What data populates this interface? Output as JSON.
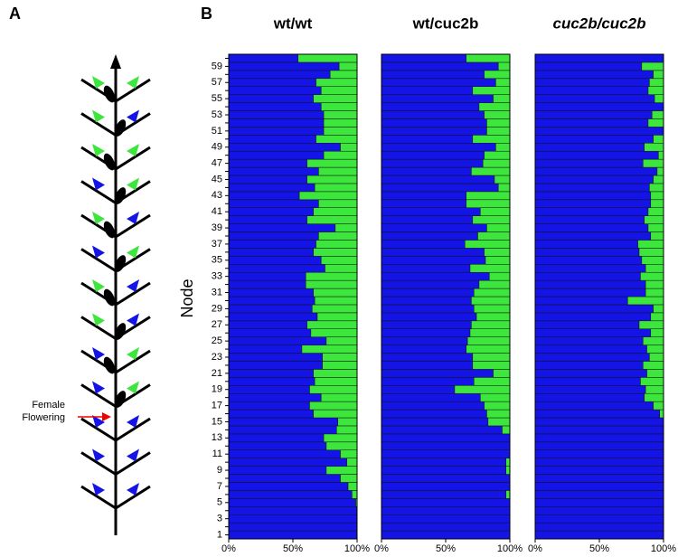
{
  "panel_labels": [
    "A",
    "B"
  ],
  "diagram": {
    "annotation": [
      "Female",
      "Flowering"
    ]
  },
  "chart_data": [
    {
      "type": "stacked-hbar",
      "title": "wt/wt",
      "y_label": "Node",
      "categories": [
        1,
        null,
        3,
        null,
        5,
        null,
        7,
        null,
        9,
        null,
        11,
        null,
        13,
        null,
        15,
        null,
        17,
        null,
        19,
        null,
        21,
        null,
        23,
        null,
        25,
        null,
        27,
        null,
        29,
        null,
        31,
        null,
        33,
        null,
        35,
        null,
        37,
        null,
        39,
        null,
        41,
        null,
        43,
        null,
        45,
        null,
        47,
        null,
        49,
        null,
        51,
        null,
        53,
        null,
        55,
        null,
        57,
        null,
        59,
        null
      ],
      "xlim": [
        0,
        100
      ],
      "xticks": [
        {
          "value": 0,
          "label": "0%"
        },
        {
          "value": 50,
          "label": "50%"
        },
        {
          "value": 100,
          "label": "100%"
        }
      ],
      "series": [
        {
          "color": "#1414e6",
          "values": [
            100,
            100,
            100,
            100,
            99,
            96,
            93,
            87,
            76,
            92,
            87,
            76,
            74,
            84,
            85,
            66,
            63,
            72,
            63,
            67,
            66,
            73,
            73,
            57,
            76,
            64,
            61,
            69,
            65,
            67,
            66,
            60,
            60,
            75,
            72,
            66,
            68,
            70,
            83,
            61,
            66,
            70,
            55,
            67,
            61,
            70,
            61,
            74,
            87,
            68,
            74,
            74,
            74,
            72,
            66,
            72,
            68,
            79,
            86,
            54
          ]
        },
        {
          "color": "#3ce63c",
          "values": [
            0,
            0,
            0,
            0,
            1,
            4,
            7,
            13,
            24,
            8,
            13,
            24,
            26,
            16,
            15,
            34,
            37,
            28,
            37,
            33,
            34,
            27,
            27,
            43,
            24,
            36,
            39,
            31,
            35,
            33,
            34,
            40,
            40,
            25,
            28,
            34,
            32,
            30,
            17,
            39,
            34,
            30,
            45,
            33,
            39,
            30,
            39,
            26,
            13,
            32,
            26,
            26,
            26,
            28,
            34,
            28,
            32,
            21,
            14,
            46
          ]
        }
      ]
    },
    {
      "type": "stacked-hbar",
      "title": "wt/cuc2b",
      "xlim": [
        0,
        100
      ],
      "xticks": [
        {
          "value": 0,
          "label": "0%"
        },
        {
          "value": 50,
          "label": "50%"
        },
        {
          "value": 100,
          "label": "100%"
        }
      ],
      "series": [
        {
          "color": "#1414e6",
          "values": [
            100,
            100,
            100,
            100,
            100,
            97,
            100,
            100,
            97,
            97,
            100,
            100,
            100,
            94,
            83,
            82,
            80,
            77,
            57,
            72,
            87,
            71,
            71,
            66,
            67,
            69,
            70,
            74,
            72,
            70,
            72,
            76,
            84,
            69,
            81,
            80,
            65,
            75,
            82,
            71,
            77,
            66,
            66,
            91,
            88,
            70,
            79,
            80,
            89,
            71,
            82,
            82,
            80,
            76,
            87,
            71,
            89,
            80,
            91,
            66
          ]
        },
        {
          "color": "#3ce63c",
          "values": [
            0,
            0,
            0,
            0,
            0,
            3,
            0,
            0,
            3,
            3,
            0,
            0,
            0,
            6,
            17,
            18,
            20,
            23,
            43,
            28,
            13,
            29,
            29,
            34,
            33,
            31,
            30,
            26,
            28,
            30,
            28,
            24,
            16,
            31,
            19,
            20,
            35,
            25,
            18,
            29,
            23,
            34,
            34,
            9,
            12,
            30,
            21,
            20,
            11,
            29,
            18,
            18,
            20,
            24,
            13,
            29,
            11,
            20,
            9,
            34
          ]
        }
      ]
    },
    {
      "type": "stacked-hbar",
      "title": "cuc2b/cuc2b",
      "xlim": [
        0,
        100
      ],
      "xticks": [
        {
          "value": 0,
          "label": "0%"
        },
        {
          "value": 50,
          "label": "50%"
        },
        {
          "value": 100,
          "label": "100%"
        }
      ],
      "series": [
        {
          "color": "#1414e6",
          "values": [
            100,
            100,
            100,
            100,
            100,
            100,
            100,
            100,
            100,
            100,
            100,
            100,
            100,
            100,
            100,
            97,
            92,
            85,
            86,
            82,
            87,
            84,
            89,
            87,
            84,
            90,
            81,
            90,
            92,
            72,
            86,
            86,
            82,
            86,
            83,
            81,
            80,
            90,
            88,
            85,
            88,
            90,
            90,
            89,
            92,
            95,
            84,
            96,
            85,
            92,
            100,
            88,
            91,
            100,
            93,
            88,
            89,
            92,
            83,
            100
          ]
        },
        {
          "color": "#3ce63c",
          "values": [
            0,
            0,
            0,
            0,
            0,
            0,
            0,
            0,
            0,
            0,
            0,
            0,
            0,
            0,
            0,
            3,
            8,
            15,
            14,
            18,
            13,
            16,
            11,
            13,
            16,
            10,
            19,
            10,
            8,
            28,
            14,
            14,
            18,
            14,
            17,
            19,
            20,
            10,
            12,
            15,
            12,
            10,
            10,
            11,
            8,
            5,
            16,
            4,
            15,
            8,
            0,
            12,
            9,
            0,
            7,
            12,
            11,
            8,
            17,
            0
          ]
        }
      ]
    }
  ]
}
